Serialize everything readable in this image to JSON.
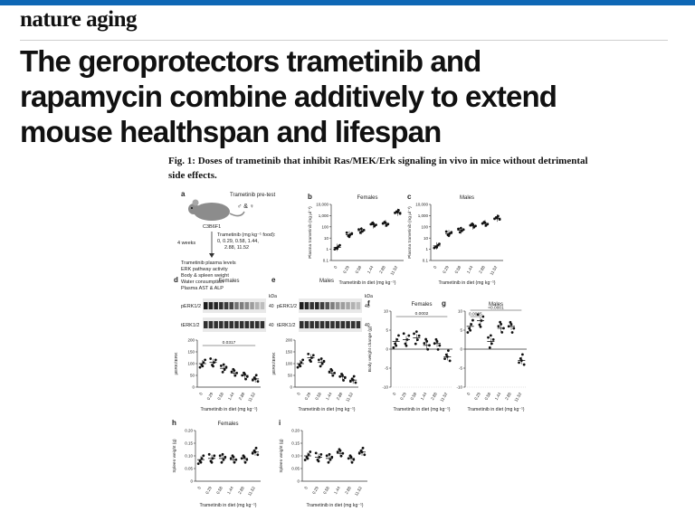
{
  "journal": "nature aging",
  "title_lines": [
    "The geroprotectors trametinib and",
    "rapamycin combine additively to extend",
    "mouse healthspan and lifespan"
  ],
  "caption": "Fig. 1: Doses of trametinib that inhibit Ras/MEK/Erk signaling in vivo in mice without detrimental side effects.",
  "colors": {
    "accent_bar": "#0e67b5",
    "ink": "#111111"
  },
  "panel_a": {
    "letter": "a",
    "title": "Trametinib pre-test",
    "strain": "C3B6F1",
    "sex": "♂ & ♀",
    "duration": "4 weeks",
    "dose_label": "Trametinib (mg kg⁻¹ food):",
    "dose_values_1": "0, 0.29, 0.58, 1.44,",
    "dose_values_2": "2.88, 11.52",
    "readouts": [
      "Trametinib plasma levels",
      "ERK pathway activity",
      "Body & spleen weight",
      "Water consumption",
      "Plasma AST & ALP"
    ],
    "icon": "mouse-icon"
  },
  "common": {
    "doses": [
      "0",
      "0.29",
      "0.58",
      "1.44",
      "2.88",
      "11.52"
    ],
    "xlabel_b": "Trametinib in diet (mg kg⁻¹)",
    "xlabel": "Trametinib in diet (mg kg⁻¹)"
  },
  "blot": {
    "kda": "kDa",
    "kda_value_1": "40",
    "kda_value_2": "40",
    "band_1": "pERK1/2",
    "band_2": "tERK1/2"
  },
  "chart_data": [
    {
      "panel": "b",
      "type": "scatter",
      "title": "Females",
      "ylabel": "Plasma trametinib (ng µl⁻¹)",
      "yscale": "log",
      "ylim": [
        0.1,
        10000
      ],
      "yticks": [
        "0.1",
        "1",
        "10",
        "100",
        "1,000",
        "10,000"
      ],
      "x": [
        "0",
        "0.29",
        "0.58",
        "1.44",
        "2.88",
        "11.52"
      ],
      "means": [
        1.5,
        20,
        45,
        150,
        200,
        2000
      ]
    },
    {
      "panel": "c",
      "type": "scatter",
      "title": "Males",
      "ylabel": "Plasma trametinib (ng µl⁻¹)",
      "yscale": "log",
      "ylim": [
        0.1,
        10000
      ],
      "yticks": [
        "0.1",
        "1",
        "10",
        "100",
        "1,000",
        "10,000"
      ],
      "x": [
        "0",
        "0.29",
        "0.58",
        "1.44",
        "2.88",
        "11.52"
      ],
      "means": [
        2,
        25,
        50,
        120,
        200,
        600
      ]
    },
    {
      "panel": "d",
      "type": "scatter",
      "title": "Females",
      "ylabel": "pERK/tERK",
      "ylim": [
        0,
        200
      ],
      "yticks": [
        "0",
        "50",
        "100",
        "150",
        "200"
      ],
      "x": [
        "0",
        "0.29",
        "0.58",
        "1.44",
        "2.88",
        "11.52"
      ],
      "means": [
        100,
        105,
        80,
        60,
        50,
        35
      ],
      "annotation": "0.0317"
    },
    {
      "panel": "e",
      "type": "scatter",
      "title": "Males",
      "ylabel": "pERK/tERK",
      "ylim": [
        0,
        200
      ],
      "yticks": [
        "0",
        "50",
        "100",
        "150",
        "200"
      ],
      "x": [
        "0",
        "0.29",
        "0.58",
        "1.44",
        "2.88",
        "11.52"
      ],
      "means": [
        100,
        125,
        105,
        60,
        45,
        30
      ]
    },
    {
      "panel": "f",
      "type": "scatter",
      "title": "Females",
      "ylabel": "Body weight change (g)",
      "ylim": [
        -10,
        10
      ],
      "yticks": [
        "-10",
        "-5",
        "0",
        "5",
        "10"
      ],
      "x": [
        "0",
        "0.29",
        "0.58",
        "1.44",
        "2.88",
        "11.52"
      ],
      "means": [
        2,
        2.5,
        3,
        1,
        1.5,
        -2
      ],
      "annotation": "0.0002"
    },
    {
      "panel": "g",
      "type": "scatter",
      "title": "Males",
      "ylabel": "",
      "ylim": [
        -10,
        10
      ],
      "yticks": [
        "-10",
        "-5",
        "0",
        "5",
        "10"
      ],
      "x": [
        "0",
        "0.29",
        "0.58",
        "1.44",
        "2.88",
        "11.52"
      ],
      "means": [
        6,
        7.5,
        2,
        5.5,
        6,
        -3
      ],
      "annotations": [
        "<0.0001",
        "0.0025"
      ]
    },
    {
      "panel": "h",
      "type": "scatter",
      "title": "Females",
      "ylabel": "Spleen weight (g)",
      "ylim": [
        0,
        0.2
      ],
      "yticks": [
        "0",
        "0.05",
        "0.10",
        "0.15",
        "0.20"
      ],
      "x": [
        "0",
        "0.29",
        "0.58",
        "1.44",
        "2.88",
        "11.52"
      ],
      "means": [
        0.085,
        0.09,
        0.09,
        0.085,
        0.09,
        0.115
      ]
    },
    {
      "panel": "i",
      "type": "scatter",
      "title": "",
      "ylabel": "Spleen weight (g)",
      "ylim": [
        0,
        0.2
      ],
      "yticks": [
        "0",
        "0.05",
        "0.10",
        "0.15",
        "0.20"
      ],
      "x": [
        "0",
        "0.29",
        "0.58",
        "1.44",
        "2.88",
        "11.52"
      ],
      "means": [
        0.1,
        0.095,
        0.09,
        0.11,
        0.09,
        0.115
      ]
    }
  ]
}
